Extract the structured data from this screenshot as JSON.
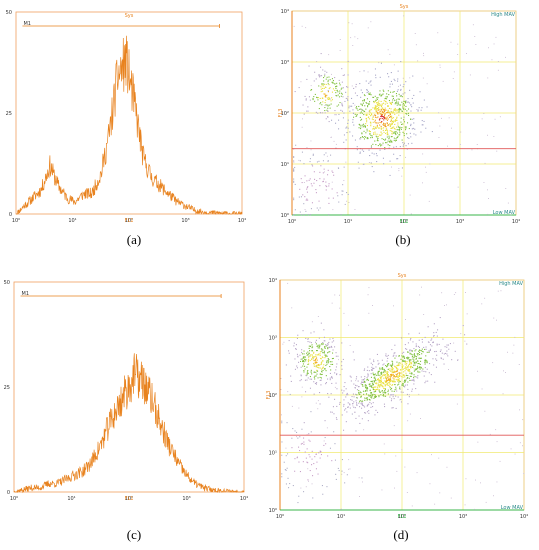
{
  "colors": {
    "histogram_line": "#e8821e",
    "histogram_frame": "#f0a060",
    "scatter_frame": "#e8c36a",
    "grid": "#f1ea70",
    "threshold": "#e05656",
    "label_orange": "#e8821e",
    "label_green": "#39b54a",
    "corner_teal": "#2a8a8a"
  },
  "panels": [
    {
      "caption": "(a)"
    },
    {
      "caption": "(b)"
    },
    {
      "caption": "(c)"
    },
    {
      "caption": "(d)"
    }
  ],
  "chart_data": [
    {
      "type": "line",
      "panel": "a",
      "title": "Sys",
      "xlabel": "FL1",
      "xscale": "log",
      "xlim": [
        1,
        10000
      ],
      "ylim": [
        0,
        50
      ],
      "xtick_labels": [
        "10⁰",
        "10¹",
        "10²",
        "10³",
        "10⁴"
      ],
      "ytick_labels": [
        "0",
        "25",
        "50"
      ],
      "yticks": [
        0,
        25,
        50
      ],
      "gate_label": "M1",
      "gate_range": [
        1.3,
        4000
      ],
      "x": [
        1,
        1.4,
        2,
        2.8,
        4,
        5.6,
        8,
        11,
        16,
        22,
        32,
        45,
        63,
        89,
        126,
        178,
        251,
        355,
        501,
        708,
        1000,
        1412,
        1995,
        2818,
        3981,
        5623,
        7943,
        10000
      ],
      "values": [
        0,
        2,
        4,
        6,
        12,
        7,
        4,
        3,
        5,
        5,
        10,
        20,
        34,
        38,
        27,
        14,
        9,
        7,
        5,
        3,
        2,
        1,
        0.5,
        0.3,
        0.2,
        0.1,
        0,
        0
      ]
    },
    {
      "type": "scatter",
      "panel": "b",
      "title": "Sys",
      "xlabel": "FL1",
      "ylabel": "FL3",
      "xscale": "log",
      "yscale": "log",
      "xlim": [
        1,
        10000
      ],
      "ylim": [
        1,
        10000
      ],
      "tick_labels": [
        "10⁰",
        "10¹",
        "10²",
        "10³",
        "10⁴"
      ],
      "grid": true,
      "threshold_y": 20,
      "quadrant_labels": {
        "top_right": "High MAV",
        "bottom_right": "Low MAV"
      },
      "clusters": [
        {
          "x": 40,
          "y": 80,
          "spread": 0.22,
          "count": 700,
          "density_color": "hot"
        },
        {
          "x": 4,
          "y": 250,
          "spread": 0.15,
          "count": 180,
          "density_color": "warm"
        },
        {
          "x": 3,
          "y": 4,
          "spread": 0.25,
          "count": 120,
          "density_color": "cool"
        }
      ]
    },
    {
      "type": "line",
      "panel": "c",
      "title": "",
      "xlabel": "FL1",
      "xscale": "log",
      "xlim": [
        1,
        10000
      ],
      "ylim": [
        0,
        50
      ],
      "xtick_labels": [
        "10⁰",
        "10¹",
        "10²",
        "10³",
        "10⁴"
      ],
      "ytick_labels": [
        "0",
        "25",
        "50"
      ],
      "yticks": [
        0,
        25,
        50
      ],
      "gate_label": "M1",
      "gate_range": [
        1.3,
        4000
      ],
      "x": [
        1,
        1.4,
        2,
        2.8,
        4,
        5.6,
        8,
        11,
        16,
        22,
        32,
        45,
        63,
        89,
        126,
        178,
        251,
        355,
        501,
        708,
        1000,
        1412,
        1995,
        2818,
        3981,
        5623,
        7943,
        10000
      ],
      "values": [
        0,
        0.5,
        1,
        1,
        2,
        2,
        3,
        4,
        5,
        7,
        11,
        16,
        20,
        24,
        28,
        26,
        22,
        16,
        11,
        7,
        4,
        2,
        1,
        0.5,
        0.3,
        0.1,
        0,
        0
      ]
    },
    {
      "type": "scatter",
      "panel": "d",
      "title": "Sys",
      "xlabel": "FL1",
      "ylabel": "FL3",
      "xscale": "log",
      "yscale": "log",
      "xlim": [
        1,
        10000
      ],
      "ylim": [
        1,
        10000
      ],
      "tick_labels": [
        "10⁰",
        "10¹",
        "10²",
        "10³",
        "10⁴"
      ],
      "grid": true,
      "threshold_y": 20,
      "quadrant_labels": {
        "top_right": "High MAV",
        "bottom_right": "Low MAV"
      },
      "clusters": [
        {
          "x": 70,
          "y": 220,
          "spread": 0.3,
          "count": 900,
          "density_color": "warm"
        },
        {
          "x": 4,
          "y": 400,
          "spread": 0.14,
          "count": 320,
          "density_color": "warm"
        },
        {
          "x": 3,
          "y": 8,
          "spread": 0.25,
          "count": 100,
          "density_color": "cool"
        }
      ]
    }
  ]
}
